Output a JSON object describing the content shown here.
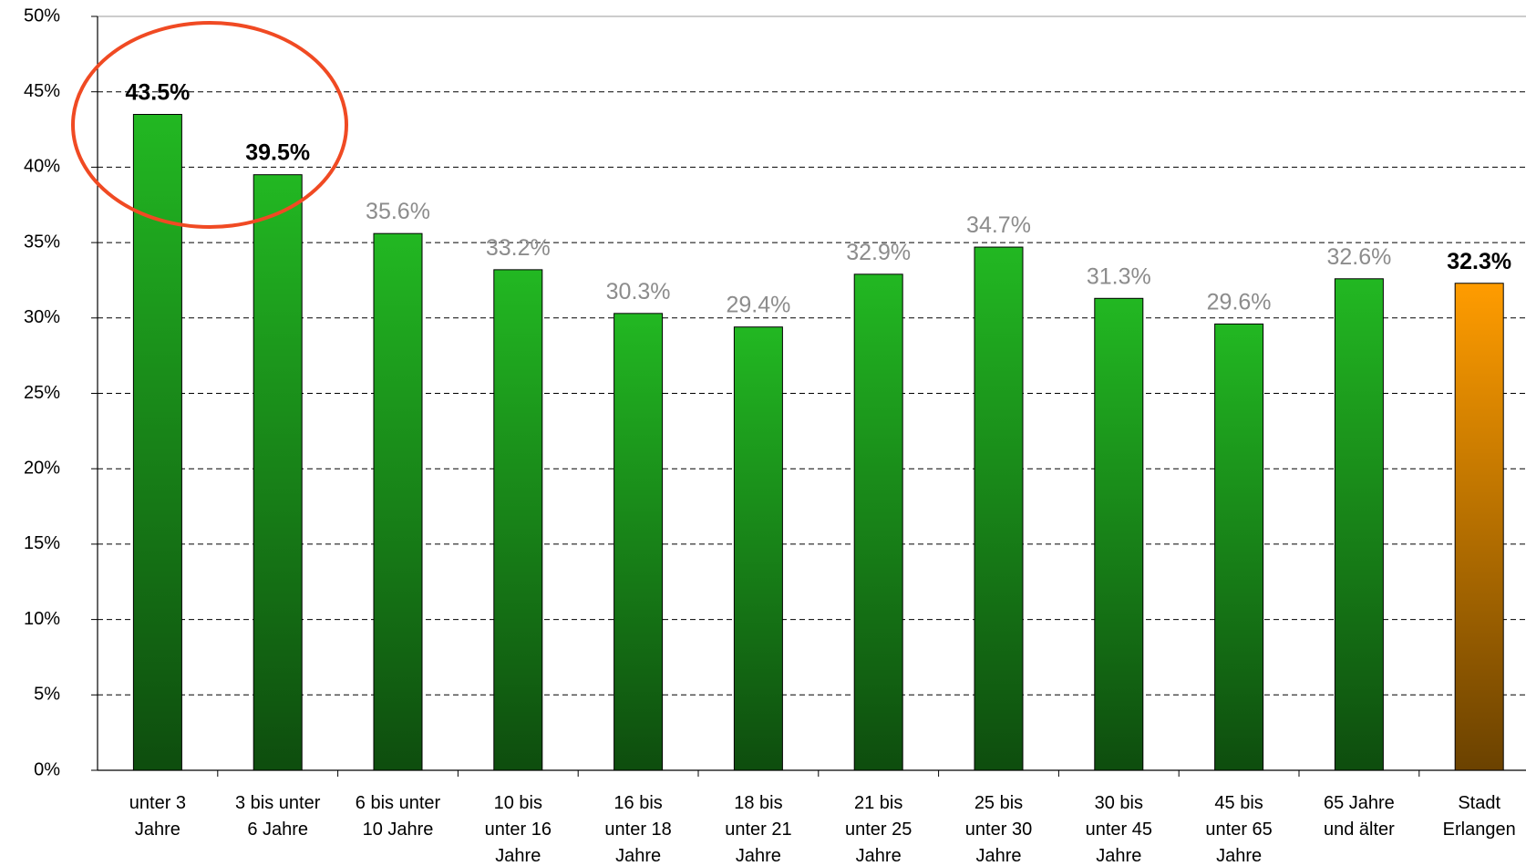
{
  "chart_data": {
    "type": "bar",
    "categories": [
      "unter 3\nJahre",
      "3 bis unter\n6 Jahre",
      "6 bis unter\n10 Jahre",
      "10 bis\nunter 16\nJahre",
      "16 bis\nunter 18\nJahre",
      "18 bis\nunter 21\nJahre",
      "21 bis\nunter 25\nJahre",
      "25 bis\nunter 30\nJahre",
      "30 bis\nunter 45\nJahre",
      "45 bis\nunter 65\nJahre",
      "65 Jahre\nund älter",
      "Stadt\nErlangen"
    ],
    "values": [
      43.5,
      39.5,
      35.6,
      33.2,
      30.3,
      29.4,
      32.9,
      34.7,
      31.3,
      29.6,
      32.6,
      32.3
    ],
    "value_labels": [
      "43.5%",
      "39.5%",
      "35.6%",
      "33.2%",
      "30.3%",
      "29.4%",
      "32.9%",
      "34.7%",
      "31.3%",
      "29.6%",
      "32.6%",
      "32.3%"
    ],
    "colors": [
      "#22b822",
      "#22b822",
      "#22b822",
      "#22b822",
      "#22b822",
      "#22b822",
      "#22b822",
      "#22b822",
      "#22b822",
      "#22b822",
      "#22b822",
      "#ff9c00"
    ],
    "value_label_colors": [
      "#000000",
      "#000000",
      "#8c8c8c",
      "#8c8c8c",
      "#8c8c8c",
      "#8c8c8c",
      "#8c8c8c",
      "#8c8c8c",
      "#8c8c8c",
      "#8c8c8c",
      "#8c8c8c",
      "#000000"
    ],
    "ylim": [
      0,
      50
    ],
    "yticks": [
      {
        "value": 0,
        "label": "0%"
      },
      {
        "value": 5,
        "label": "5%"
      },
      {
        "value": 10,
        "label": "10%"
      },
      {
        "value": 15,
        "label": "15%"
      },
      {
        "value": 20,
        "label": "20%"
      },
      {
        "value": 25,
        "label": "25%"
      },
      {
        "value": 30,
        "label": "30%"
      },
      {
        "value": 35,
        "label": "35%"
      },
      {
        "value": 40,
        "label": "40%"
      },
      {
        "value": 45,
        "label": "45%"
      },
      {
        "value": 50,
        "label": "50%"
      }
    ],
    "grid": true
  }
}
